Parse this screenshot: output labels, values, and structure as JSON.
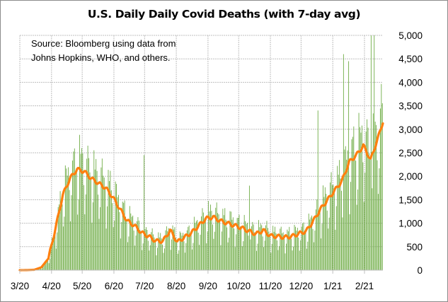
{
  "chart_data": {
    "type": "bar+line",
    "title": "U.S. Daily Daily Covid Deaths (with 7-day avg)",
    "annotation": "Source:  Bloomberg using data from Johns Hopkins, WHO, and others.",
    "annotation_lines": [
      "Source:  Bloomberg using data from",
      "Johns Hopkins, WHO, and others."
    ],
    "xlabel": "",
    "ylabel": "",
    "x_start_date": "2020-03-01",
    "x_tick_labels": [
      "3/20",
      "4/20",
      "5/20",
      "6/20",
      "7/20",
      "8/20",
      "9/20",
      "10/20",
      "11/20",
      "12/20",
      "1/21",
      "2/21"
    ],
    "x_tick_day_offsets": [
      0,
      31,
      61,
      92,
      122,
      153,
      184,
      214,
      245,
      275,
      306,
      337
    ],
    "x_range_days": [
      0,
      355
    ],
    "ylim": [
      0,
      5000
    ],
    "y_ticks": [
      0,
      500,
      1000,
      1500,
      2000,
      2500,
      3000,
      3500,
      4000,
      4500,
      5000
    ],
    "y_tick_labels": [
      "0",
      "500",
      "1,000",
      "1,500",
      "2,000",
      "2,500",
      "3,000",
      "3,500",
      "4,000",
      "4,500",
      "5,000"
    ],
    "y_axis_position": "right",
    "grid": true,
    "legend": "none",
    "series": [
      {
        "name": "Daily deaths",
        "type": "bar",
        "color": "#70ad47",
        "weekly_avg_basis": true
      },
      {
        "name": "7-day avg",
        "type": "line",
        "color": "#ff7f0e",
        "weekly_values": [
          0,
          2,
          8,
          60,
          250,
          900,
          1600,
          1950,
          2150,
          2100,
          1950,
          1850,
          1750,
          1550,
          1300,
          1050,
          950,
          800,
          720,
          620,
          620,
          850,
          600,
          700,
          800,
          950,
          1100,
          1130,
          1050,
          1000,
          950,
          900,
          830,
          770,
          850,
          730,
          720,
          700,
          720,
          780,
          830,
          1050,
          1300,
          1500,
          1700,
          1900,
          2300,
          2450,
          2650,
          2350,
          2800,
          3300,
          3250,
          3100,
          3200,
          3050,
          2500
        ]
      }
    ],
    "weekday_pattern": [
      0.55,
      0.75,
      1.25,
      1.22,
      1.2,
      1.1,
      0.93
    ],
    "spikes": [
      {
        "day": 60,
        "value": 2600
      },
      {
        "day": 121,
        "value": 2450
      },
      {
        "day": 224,
        "value": 1800
      },
      {
        "day": 291,
        "value": 3400
      },
      {
        "day": 316,
        "value": 4600
      },
      {
        "day": 321,
        "value": 4450
      },
      {
        "day": 343,
        "value": 5000
      },
      {
        "day": 346,
        "value": 5000
      }
    ]
  }
}
